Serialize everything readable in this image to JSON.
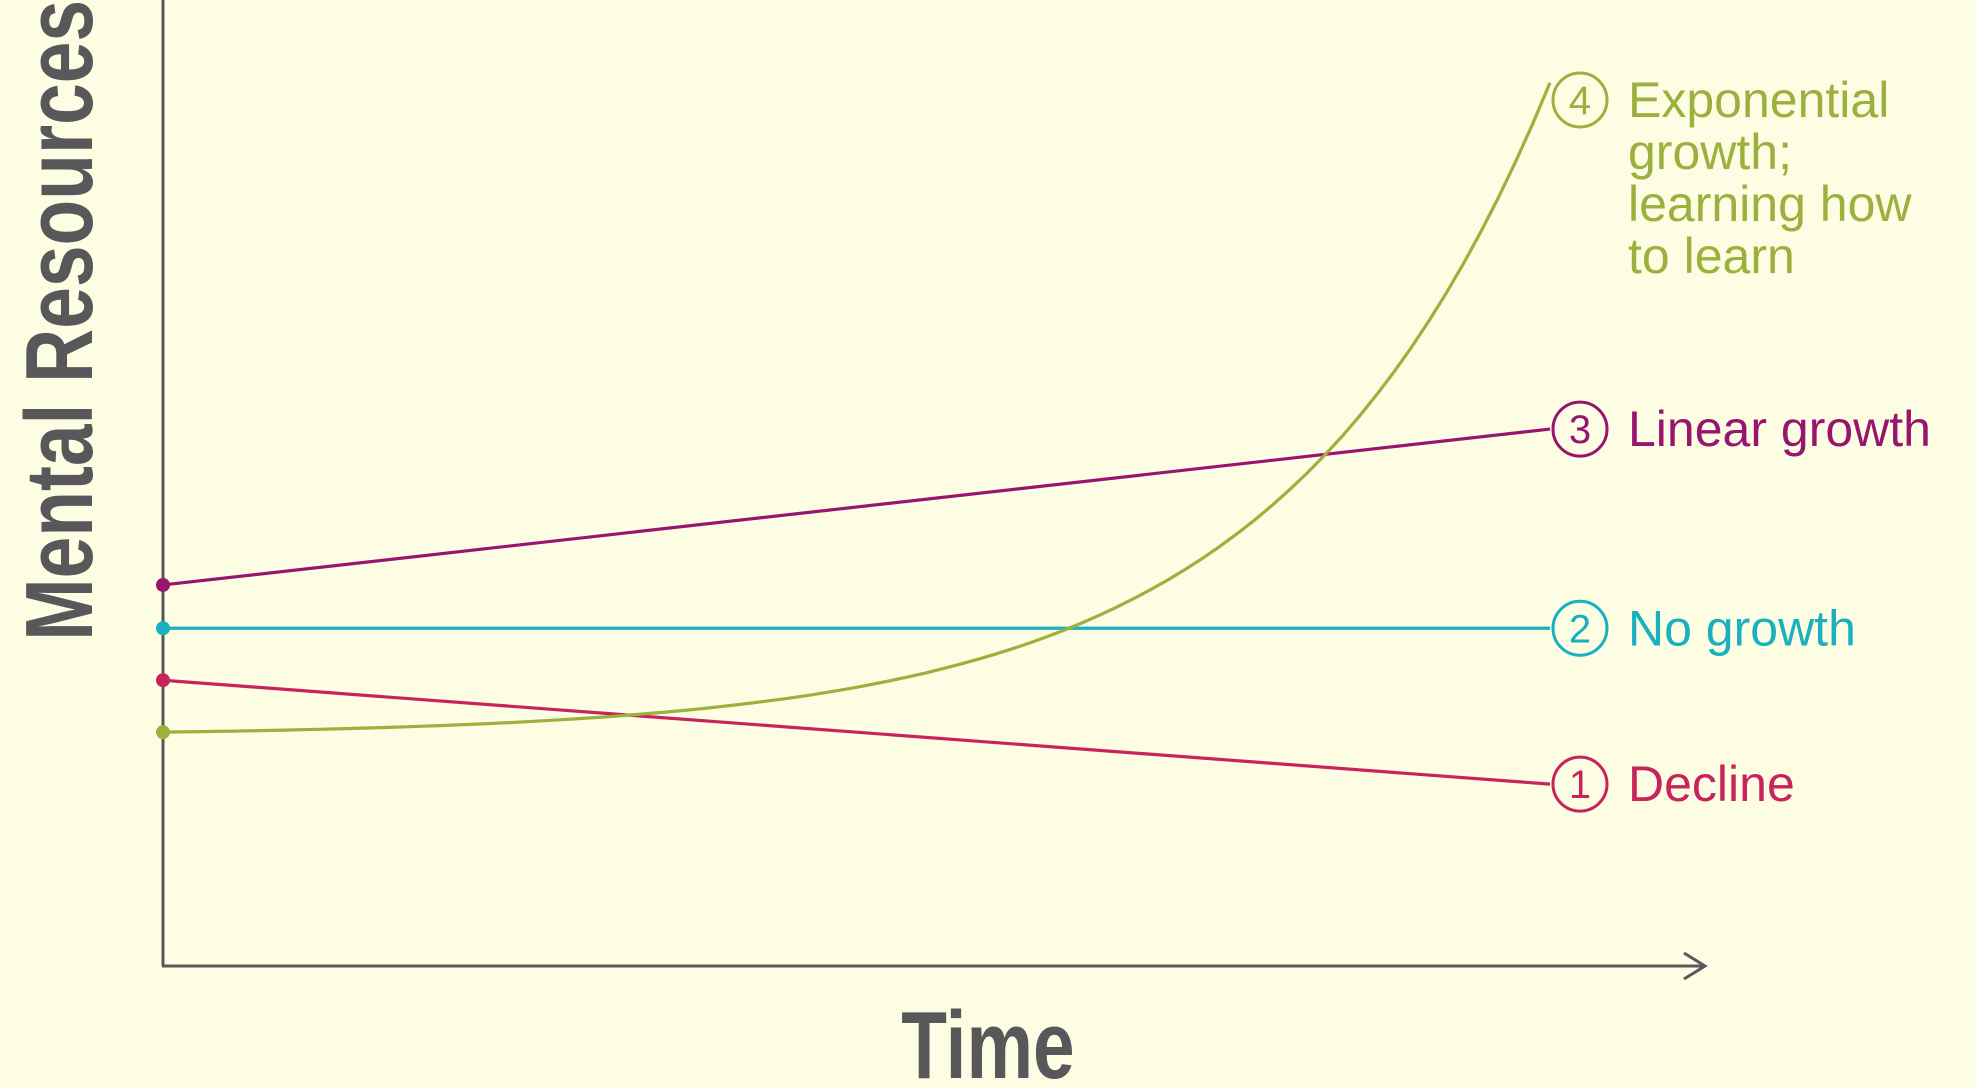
{
  "chart_data": {
    "type": "line",
    "xlabel": "Time",
    "ylabel": "Mental Resources",
    "grid": false,
    "legend": "inline-right",
    "x": [
      0,
      1
    ],
    "series": [
      {
        "id": "decline",
        "marker": "1",
        "name": "Decline",
        "name_lines": [
          "Decline"
        ],
        "color": "#c8235a",
        "shape": "linear",
        "start": 0.33,
        "end": 0.21
      },
      {
        "id": "no-growth",
        "marker": "2",
        "name": "No growth",
        "name_lines": [
          "No growth"
        ],
        "color": "#1ab0bf",
        "shape": "linear",
        "start": 0.39,
        "end": 0.39
      },
      {
        "id": "linear-growth",
        "marker": "3",
        "name": "Linear growth",
        "name_lines": [
          "Linear growth"
        ],
        "color": "#98156f",
        "shape": "linear",
        "start": 0.44,
        "end": 0.62
      },
      {
        "id": "exponential-growth",
        "marker": "4",
        "name": "Exponential growth; learning how to learn",
        "name_lines": [
          "Exponential",
          "growth;",
          "learning how",
          "to learn"
        ],
        "color": "#9db03d",
        "shape": "exponential",
        "start": 0.27,
        "end": 1.02
      }
    ]
  },
  "colors": {
    "axis": "#58585a",
    "background": "#fdfde3"
  }
}
